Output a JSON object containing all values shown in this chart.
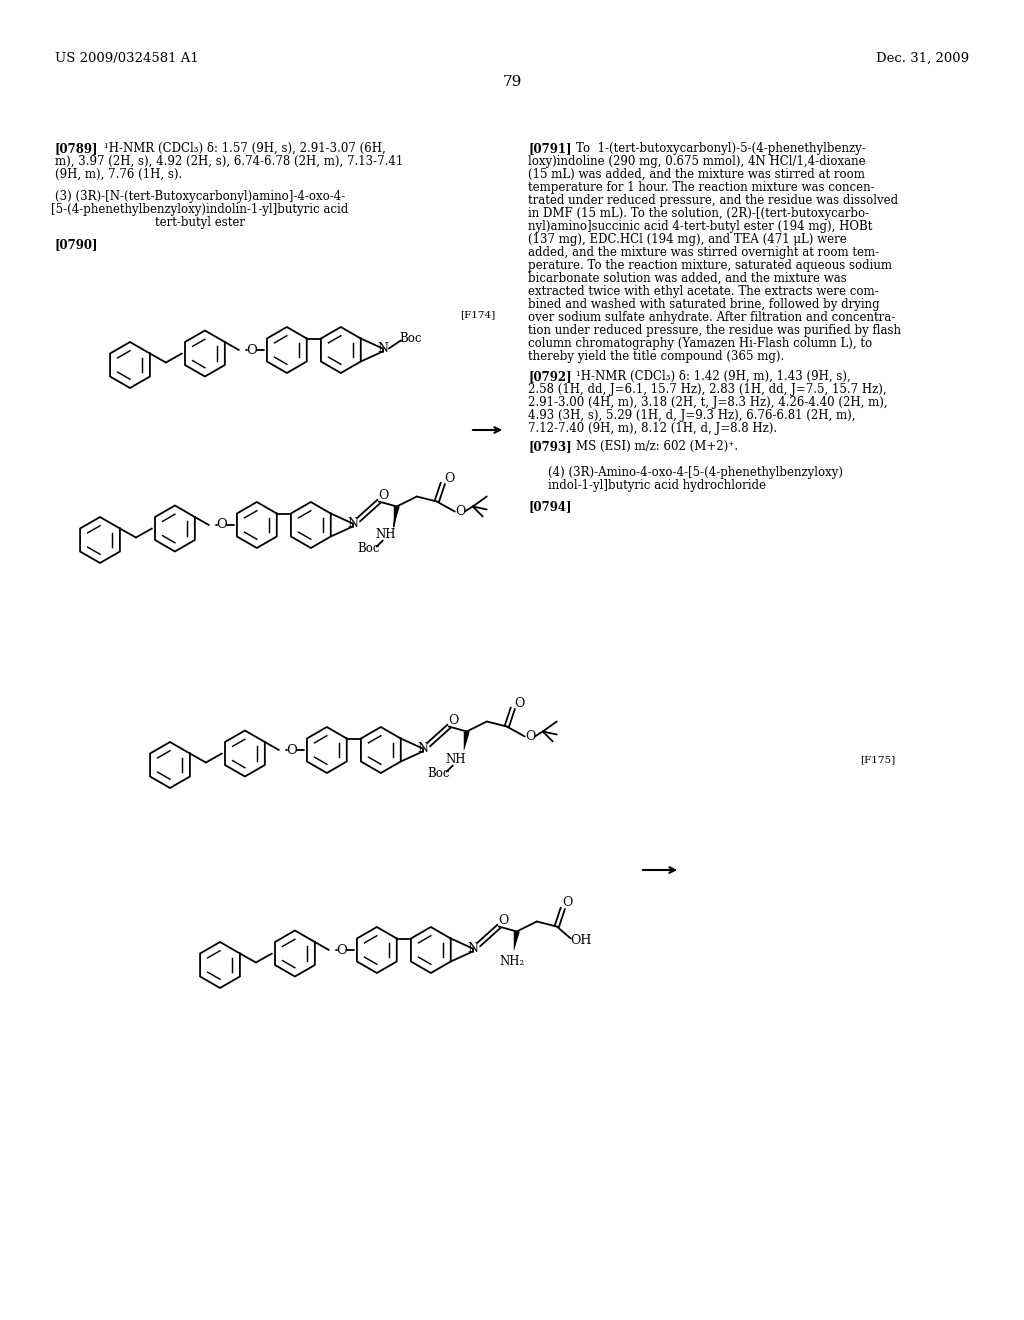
{
  "background_color": "#ffffff",
  "page_number": "79",
  "header_left": "US 2009/0324581 A1",
  "header_right": "Dec. 31, 2009"
}
